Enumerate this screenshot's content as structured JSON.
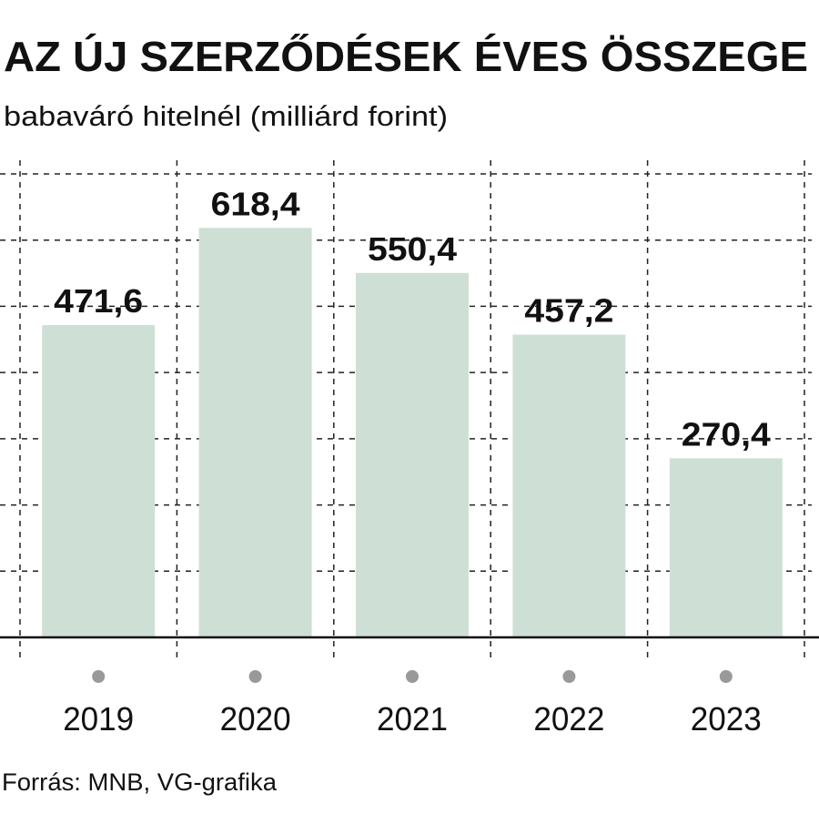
{
  "chart_data": {
    "type": "bar",
    "title": "AZ ÚJ SZERZŐDÉSEK ÉVES ÖSSZEGE",
    "subtitle": "babaváró hitelnél (milliárd forint)",
    "source": "Forrás: MNB, VG-grafika",
    "categories": [
      "2019",
      "2020",
      "2021",
      "2022",
      "2023"
    ],
    "values": [
      471.6,
      618.4,
      550.4,
      457.2,
      270.4
    ],
    "value_labels": [
      "471,6",
      "618,4",
      "550,4",
      "457,2",
      "270,4"
    ],
    "color": "#cee0d5",
    "ylim": [
      0,
      700
    ],
    "yticks": [
      0,
      100,
      200,
      300,
      400,
      500,
      600,
      700
    ],
    "grid": true
  }
}
